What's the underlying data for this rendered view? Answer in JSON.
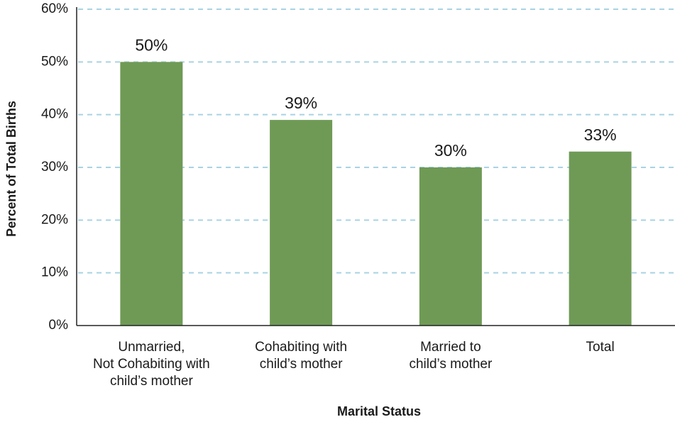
{
  "chart_data": {
    "type": "bar",
    "categories": [
      "Unmarried,\nNot Cohabiting with\nchild’s mother",
      "Cohabiting with\nchild’s mother",
      "Married to\nchild’s mother",
      "Total"
    ],
    "values": [
      50,
      39,
      30,
      33
    ],
    "value_labels": [
      "50%",
      "39%",
      "30%",
      "33%"
    ],
    "color": "#6f9a56",
    "xlabel": "Marital Status",
    "ylabel": "Percent of Total Births",
    "ylim": [
      0,
      60
    ],
    "yticks": [
      {
        "value": 0,
        "label": "0%"
      },
      {
        "value": 10,
        "label": "10%"
      },
      {
        "value": 20,
        "label": "20%"
      },
      {
        "value": 30,
        "label": "30%"
      },
      {
        "value": 40,
        "label": "40%"
      },
      {
        "value": 50,
        "label": "50%"
      },
      {
        "value": 60,
        "label": "60%"
      }
    ],
    "grid": true
  }
}
